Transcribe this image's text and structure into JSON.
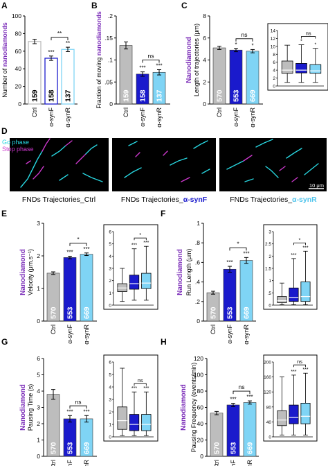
{
  "colors": {
    "ctrl": "#bdbdbd",
    "synF": "#1a1acc",
    "synR": "#7fd4f5",
    "purple": "#7a2bb8",
    "cyan": "#28d6e0",
    "magenta": "#cc38cc"
  },
  "panel_labels": [
    "A",
    "B",
    "C",
    "D",
    "E",
    "F",
    "G",
    "H"
  ],
  "panel_d": {
    "legend_go": "Go phase",
    "legend_stop": "Stop phase",
    "scale_bar": "10 μm",
    "captions": [
      {
        "prefix": "FNDs Trajectories_",
        "condition": "Ctrl"
      },
      {
        "prefix": "FNDs Trajectories_",
        "condition": "α-synF"
      },
      {
        "prefix": "FNDs Trajectories_",
        "condition": "α-synR"
      }
    ]
  },
  "chart_data": [
    {
      "id": "A",
      "type": "bar",
      "ylabel_parts": [
        {
          "text": "Number of ",
          "accent": false
        },
        {
          "text": "nanodiamonds",
          "accent": true
        }
      ],
      "ylim": [
        0,
        100
      ],
      "yticks": [
        0,
        20,
        40,
        60,
        80,
        100
      ],
      "categories": [
        "Ctrl",
        "α-synF",
        "α-synR"
      ],
      "values": [
        71,
        52,
        62
      ],
      "errors": [
        2.5,
        2.5,
        2.5
      ],
      "n_labels": [
        "159",
        "158",
        "137"
      ],
      "style": "open",
      "stars": [
        "",
        "***",
        "**"
      ],
      "comparison": {
        "label": "**",
        "from": 1,
        "to": 2
      }
    },
    {
      "id": "B",
      "type": "bar",
      "ylabel_parts": [
        {
          "text": "Fraction of moving ",
          "accent": false
        },
        {
          "text": "nanodiamonds",
          "accent": true
        }
      ],
      "ylim": [
        0,
        0.2
      ],
      "yticks": [
        0,
        0.05,
        0.1,
        0.15,
        0.2
      ],
      "categories": [
        "Ctrl",
        "α-synF",
        "α-synR"
      ],
      "values": [
        0.133,
        0.068,
        0.072
      ],
      "errors": [
        0.008,
        0.005,
        0.006
      ],
      "n_labels": [
        "159",
        "158",
        "137"
      ],
      "style": "filled",
      "stars": [
        "",
        "***",
        "***"
      ],
      "comparison": {
        "label": "ns",
        "from": 1,
        "to": 2
      }
    },
    {
      "id": "C",
      "type": "bar",
      "title": "Nanodiamond",
      "ylabel": "Length of trajectories (μm)",
      "ylim": [
        0,
        8
      ],
      "yticks": [
        0,
        2,
        4,
        6,
        8
      ],
      "categories": [
        "Ctrl",
        "α-synF",
        "α-synR"
      ],
      "values": [
        5.1,
        4.9,
        4.8
      ],
      "errors": [
        0.15,
        0.15,
        0.15
      ],
      "n_labels": [
        "570",
        "553",
        "669"
      ],
      "style": "filled",
      "stars": [
        "",
        "*",
        "*"
      ],
      "comparison": {
        "label": "ns",
        "from": 1,
        "to": 2
      },
      "inset": {
        "type": "box",
        "ylim": [
          0,
          14
        ],
        "yticks": [
          0,
          2,
          4,
          6,
          8,
          10,
          12,
          14
        ],
        "boxes": [
          {
            "min": 0.9,
            "q1": 3.2,
            "median": 4.0,
            "q3": 6.3,
            "max": 10.3
          },
          {
            "min": 0.9,
            "q1": 3.3,
            "median": 4.0,
            "q3": 5.7,
            "max": 10.4
          },
          {
            "min": 0.9,
            "q1": 3.2,
            "median": 3.8,
            "q3": 5.4,
            "max": 9.5
          }
        ],
        "stars": [
          "",
          "*",
          "*"
        ],
        "comparison": {
          "label": "ns",
          "from": 1,
          "to": 2
        }
      }
    },
    {
      "id": "E",
      "type": "bar",
      "title": "Nanodiamond",
      "ylabel": "Velocity (μm.s⁻¹)",
      "ylim": [
        0,
        3
      ],
      "yticks": [
        0,
        1,
        2,
        3
      ],
      "categories": [
        "Ctrl",
        "α-synF",
        "α-synR"
      ],
      "values": [
        1.47,
        1.95,
        2.05
      ],
      "errors": [
        0.04,
        0.04,
        0.04
      ],
      "n_labels": [
        "570",
        "553",
        "669"
      ],
      "style": "filled",
      "stars": [
        "",
        "***",
        "***"
      ],
      "comparison": {
        "label": "*",
        "from": 1,
        "to": 2
      },
      "inset": {
        "type": "box",
        "ylim": [
          0,
          6
        ],
        "yticks": [
          0,
          1,
          2,
          3,
          4,
          5,
          6
        ],
        "boxes": [
          {
            "min": 0.3,
            "q1": 1.1,
            "median": 1.4,
            "q3": 1.75,
            "max": 3.0
          },
          {
            "min": 0.4,
            "q1": 1.3,
            "median": 1.75,
            "q3": 2.45,
            "max": 4.6
          },
          {
            "min": 0.4,
            "q1": 1.35,
            "median": 1.8,
            "q3": 2.6,
            "max": 4.8
          }
        ],
        "stars": [
          "",
          "***",
          "***"
        ],
        "comparison": {
          "label": "*",
          "from": 1,
          "to": 2
        }
      }
    },
    {
      "id": "F",
      "type": "bar",
      "title": "Nanodiamond",
      "ylabel": "Run Length (μm)",
      "ylim": [
        0,
        1
      ],
      "yticks": [
        0,
        0.2,
        0.4,
        0.6,
        0.8,
        1.0
      ],
      "categories": [
        "Ctrl",
        "α-synF",
        "α-synR"
      ],
      "values": [
        0.29,
        0.53,
        0.62
      ],
      "errors": [
        0.015,
        0.03,
        0.03
      ],
      "n_labels": [
        "570",
        "553",
        "669"
      ],
      "style": "filled",
      "stars": [
        "",
        "***",
        "***"
      ],
      "comparison": {
        "label": "*",
        "from": 1,
        "to": 2
      },
      "inset": {
        "type": "box",
        "ylim": [
          0,
          3
        ],
        "yticks": [
          0,
          0.5,
          1,
          1.5,
          2,
          2.5,
          3
        ],
        "boxes": [
          {
            "min": 0.02,
            "q1": 0.1,
            "median": 0.18,
            "q3": 0.35,
            "max": 0.9
          },
          {
            "min": 0.02,
            "q1": 0.15,
            "median": 0.3,
            "q3": 0.7,
            "max": 1.9
          },
          {
            "min": 0.02,
            "q1": 0.15,
            "median": 0.35,
            "q3": 0.95,
            "max": 2.2
          }
        ],
        "stars": [
          "",
          "***",
          "***"
        ],
        "comparison": {
          "label": "*",
          "from": 1,
          "to": 2
        }
      }
    },
    {
      "id": "G",
      "type": "bar",
      "title": "Nanodiamond",
      "ylabel": "Pausing Time (s)",
      "ylim": [
        0,
        6
      ],
      "yticks": [
        0,
        1,
        2,
        3,
        4,
        5,
        6
      ],
      "categories": [
        "Ctrl",
        "α-synF",
        "α-synR"
      ],
      "values": [
        3.8,
        2.3,
        2.3
      ],
      "errors": [
        0.3,
        0.2,
        0.2
      ],
      "n_labels": [
        "570",
        "553",
        "669"
      ],
      "style": "filled",
      "stars": [
        "",
        "***",
        "***"
      ],
      "comparison": {
        "label": "ns",
        "from": 1,
        "to": 2
      },
      "inset": {
        "type": "box",
        "ylim": [
          0,
          6
        ],
        "yticks": [
          0,
          1,
          2,
          3,
          4,
          5,
          6
        ],
        "boxes": [
          {
            "min": 0.1,
            "q1": 0.6,
            "median": 1.3,
            "q3": 2.4,
            "max": 5.5
          },
          {
            "min": 0.1,
            "q1": 0.5,
            "median": 1.0,
            "q3": 1.8,
            "max": 3.6
          },
          {
            "min": 0.1,
            "q1": 0.5,
            "median": 1.0,
            "q3": 1.8,
            "max": 3.6
          }
        ],
        "stars": [
          "",
          "***",
          "***"
        ],
        "comparison": {
          "label": "ns",
          "from": 1,
          "to": 2
        }
      }
    },
    {
      "id": "H",
      "type": "bar",
      "title": "Nanodiamond",
      "ylabel": "Pausing Frequency (events/min)",
      "ylim": [
        0,
        120
      ],
      "yticks": [
        0,
        20,
        40,
        60,
        80,
        100,
        120
      ],
      "categories": [
        "Ctrl",
        "α-synF",
        "α-synR"
      ],
      "values": [
        53,
        63,
        66
      ],
      "errors": [
        2,
        2,
        2
      ],
      "n_labels": [
        "570",
        "553",
        "669"
      ],
      "style": "filled",
      "stars": [
        "",
        "***",
        "***"
      ],
      "comparison": {
        "label": "ns",
        "from": 1,
        "to": 2
      },
      "inset": {
        "type": "box",
        "ylim": [
          0,
          200
        ],
        "yticks": [
          0,
          40,
          80,
          120,
          160,
          200
        ],
        "boxes": [
          {
            "min": 5,
            "q1": 30,
            "median": 45,
            "q3": 70,
            "max": 160
          },
          {
            "min": 5,
            "q1": 35,
            "median": 52,
            "q3": 85,
            "max": 165
          },
          {
            "min": 5,
            "q1": 35,
            "median": 55,
            "q3": 90,
            "max": 170
          }
        ],
        "stars": [
          "",
          "***",
          "***"
        ],
        "comparison": {
          "label": "ns",
          "from": 1,
          "to": 2
        }
      }
    }
  ]
}
